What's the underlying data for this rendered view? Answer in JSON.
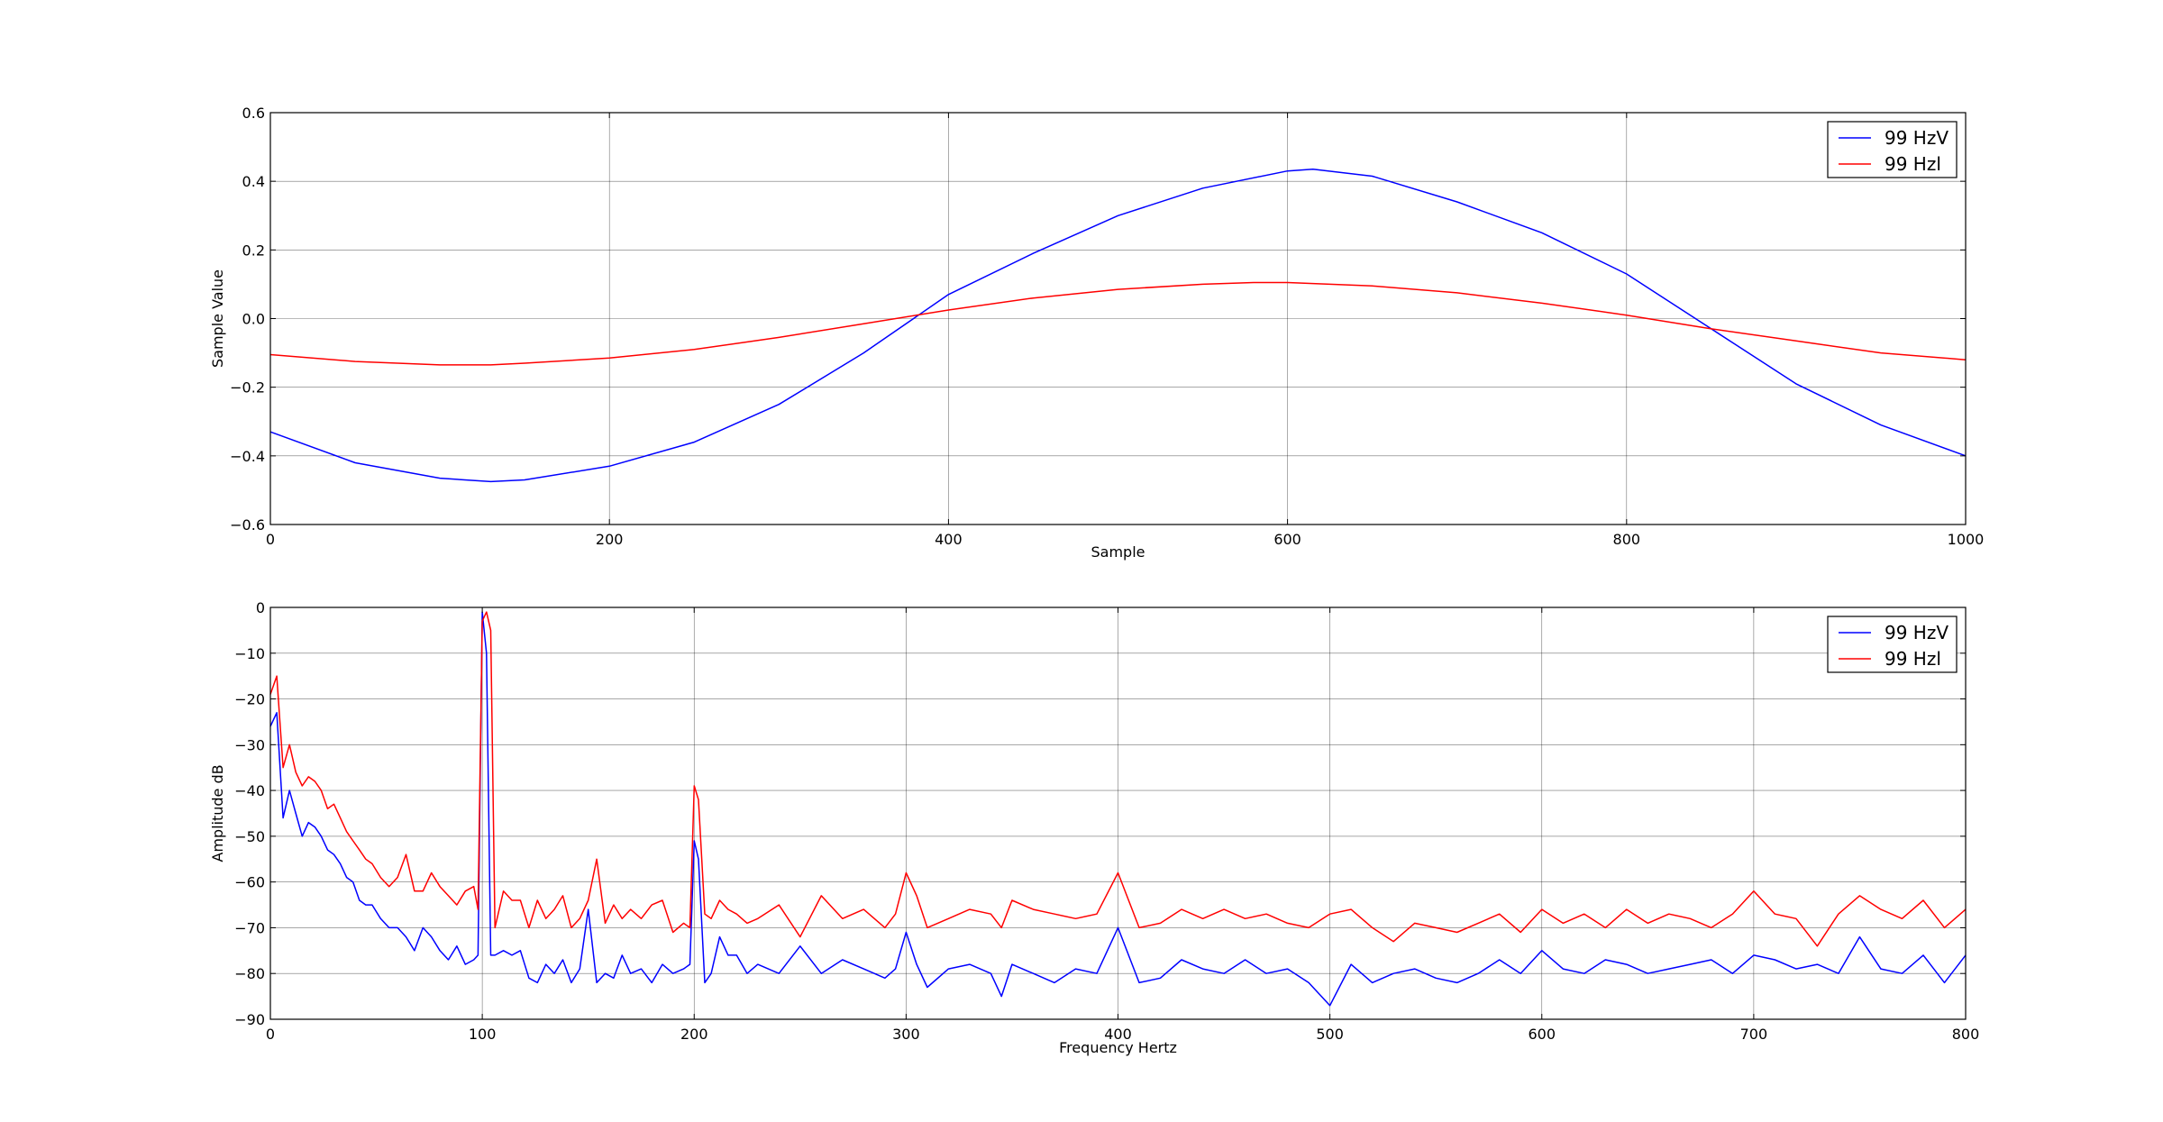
{
  "chart_data": [
    {
      "type": "line",
      "xlabel": "Sample",
      "ylabel": "Sample Value",
      "xlim": [
        0,
        1000
      ],
      "ylim": [
        -0.6,
        0.6
      ],
      "xticks": [
        "0",
        "200",
        "400",
        "600",
        "800",
        "1000"
      ],
      "yticks": [
        "0.6",
        "0.4",
        "0.2",
        "0.0",
        "−0.2",
        "−0.4",
        "−0.6"
      ],
      "grid": true,
      "legend_position": "top-right",
      "series": [
        {
          "name": "99 HzV",
          "color": "#0000ff",
          "x": [
            0,
            50,
            100,
            130,
            150,
            200,
            250,
            300,
            350,
            400,
            450,
            500,
            550,
            600,
            615,
            650,
            700,
            750,
            800,
            850,
            900,
            950,
            1000
          ],
          "y": [
            -0.33,
            -0.42,
            -0.465,
            -0.475,
            -0.47,
            -0.43,
            -0.36,
            -0.25,
            -0.1,
            0.07,
            0.19,
            0.3,
            0.38,
            0.43,
            0.435,
            0.415,
            0.34,
            0.25,
            0.13,
            -0.03,
            -0.19,
            -0.31,
            -0.4
          ]
        },
        {
          "name": "99 Hzl",
          "color": "#ff0000",
          "x": [
            0,
            50,
            100,
            130,
            150,
            200,
            250,
            300,
            350,
            400,
            450,
            500,
            550,
            580,
            600,
            650,
            700,
            750,
            800,
            850,
            900,
            950,
            1000
          ],
          "y": [
            -0.105,
            -0.125,
            -0.135,
            -0.135,
            -0.13,
            -0.115,
            -0.09,
            -0.055,
            -0.015,
            0.025,
            0.06,
            0.085,
            0.1,
            0.105,
            0.105,
            0.095,
            0.075,
            0.045,
            0.01,
            -0.03,
            -0.065,
            -0.1,
            -0.12
          ]
        }
      ]
    },
    {
      "type": "line",
      "xlabel": "Frequency Hertz",
      "ylabel": "Amplitude dB",
      "xlim": [
        0,
        800
      ],
      "ylim": [
        -90,
        0
      ],
      "xticks": [
        "0",
        "100",
        "200",
        "300",
        "400",
        "500",
        "600",
        "700",
        "800"
      ],
      "yticks": [
        "0",
        "−10",
        "−20",
        "−30",
        "−40",
        "−50",
        "−60",
        "−70",
        "−80",
        "−90"
      ],
      "grid": true,
      "legend_position": "top-right",
      "series": [
        {
          "name": "99 HzV",
          "color": "#0000ff",
          "x": [
            0,
            3,
            6,
            9,
            12,
            15,
            18,
            21,
            24,
            27,
            30,
            33,
            36,
            39,
            42,
            45,
            48,
            52,
            56,
            60,
            64,
            68,
            72,
            76,
            80,
            84,
            88,
            92,
            96,
            98,
            100,
            102,
            104,
            106,
            110,
            114,
            118,
            122,
            126,
            130,
            134,
            138,
            142,
            146,
            150,
            154,
            158,
            162,
            166,
            170,
            175,
            180,
            185,
            190,
            195,
            198,
            200,
            202,
            205,
            208,
            212,
            216,
            220,
            225,
            230,
            240,
            250,
            260,
            270,
            280,
            290,
            295,
            300,
            305,
            310,
            320,
            330,
            340,
            345,
            350,
            360,
            370,
            380,
            390,
            400,
            410,
            420,
            430,
            440,
            450,
            460,
            470,
            480,
            490,
            500,
            510,
            520,
            530,
            540,
            550,
            560,
            570,
            580,
            590,
            600,
            610,
            620,
            630,
            640,
            650,
            660,
            670,
            680,
            690,
            700,
            710,
            720,
            730,
            740,
            750,
            760,
            770,
            780,
            790,
            800
          ],
          "y": [
            -26,
            -23,
            -46,
            -40,
            -45,
            -50,
            -47,
            -48,
            -50,
            -53,
            -54,
            -56,
            -59,
            -60,
            -64,
            -65,
            -65,
            -68,
            -70,
            -70,
            -72,
            -75,
            -70,
            -72,
            -75,
            -77,
            -74,
            -78,
            -77,
            -76,
            -1,
            -10,
            -76,
            -76,
            -75,
            -76,
            -75,
            -81,
            -82,
            -78,
            -80,
            -77,
            -82,
            -79,
            -66,
            -82,
            -80,
            -81,
            -76,
            -80,
            -79,
            -82,
            -78,
            -80,
            -79,
            -78,
            -51,
            -55,
            -82,
            -80,
            -72,
            -76,
            -76,
            -80,
            -78,
            -80,
            -74,
            -80,
            -77,
            -79,
            -81,
            -79,
            -71,
            -78,
            -83,
            -79,
            -78,
            -80,
            -85,
            -78,
            -80,
            -82,
            -79,
            -80,
            -70,
            -82,
            -81,
            -77,
            -79,
            -80,
            -77,
            -80,
            -79,
            -82,
            -87,
            -78,
            -82,
            -80,
            -79,
            -81,
            -82,
            -80,
            -77,
            -80,
            -75,
            -79,
            -80,
            -77,
            -78,
            -80,
            -79,
            -78,
            -77,
            -80,
            -76,
            -77,
            -79,
            -78,
            -80,
            -72,
            -79,
            -80,
            -76,
            -82,
            -76
          ]
        },
        {
          "name": "99 Hzl",
          "color": "#ff0000",
          "x": [
            0,
            3,
            6,
            9,
            12,
            15,
            18,
            21,
            24,
            27,
            30,
            33,
            36,
            39,
            42,
            45,
            48,
            52,
            56,
            60,
            64,
            68,
            72,
            76,
            80,
            84,
            88,
            92,
            96,
            98,
            100,
            102,
            104,
            106,
            110,
            114,
            118,
            122,
            126,
            130,
            134,
            138,
            142,
            146,
            150,
            154,
            158,
            162,
            166,
            170,
            175,
            180,
            185,
            190,
            195,
            198,
            200,
            202,
            205,
            208,
            212,
            216,
            220,
            225,
            230,
            240,
            250,
            260,
            270,
            280,
            290,
            295,
            300,
            305,
            310,
            320,
            330,
            340,
            345,
            350,
            360,
            370,
            380,
            390,
            400,
            410,
            420,
            430,
            440,
            450,
            460,
            470,
            480,
            490,
            500,
            510,
            520,
            530,
            540,
            550,
            560,
            570,
            580,
            590,
            600,
            610,
            620,
            630,
            640,
            650,
            660,
            670,
            680,
            690,
            700,
            710,
            720,
            730,
            740,
            750,
            760,
            770,
            780,
            790,
            800
          ],
          "y": [
            -19,
            -15,
            -35,
            -30,
            -36,
            -39,
            -37,
            -38,
            -40,
            -44,
            -43,
            -46,
            -49,
            -51,
            -53,
            -55,
            -56,
            -59,
            -61,
            -59,
            -54,
            -62,
            -62,
            -58,
            -61,
            -63,
            -65,
            -62,
            -61,
            -66,
            -3,
            -1,
            -5,
            -70,
            -62,
            -64,
            -64,
            -70,
            -64,
            -68,
            -66,
            -63,
            -70,
            -68,
            -64,
            -55,
            -69,
            -65,
            -68,
            -66,
            -68,
            -65,
            -64,
            -71,
            -69,
            -70,
            -39,
            -42,
            -67,
            -68,
            -64,
            -66,
            -67,
            -69,
            -68,
            -65,
            -72,
            -63,
            -68,
            -66,
            -70,
            -67,
            -58,
            -63,
            -70,
            -68,
            -66,
            -67,
            -70,
            -64,
            -66,
            -67,
            -68,
            -67,
            -58,
            -70,
            -69,
            -66,
            -68,
            -66,
            -68,
            -67,
            -69,
            -70,
            -67,
            -66,
            -70,
            -73,
            -69,
            -70,
            -71,
            -69,
            -67,
            -71,
            -66,
            -69,
            -67,
            -70,
            -66,
            -69,
            -67,
            -68,
            -70,
            -67,
            -62,
            -67,
            -68,
            -74,
            -67,
            -63,
            -66,
            -68,
            -64,
            -70,
            -66
          ]
        }
      ]
    }
  ]
}
